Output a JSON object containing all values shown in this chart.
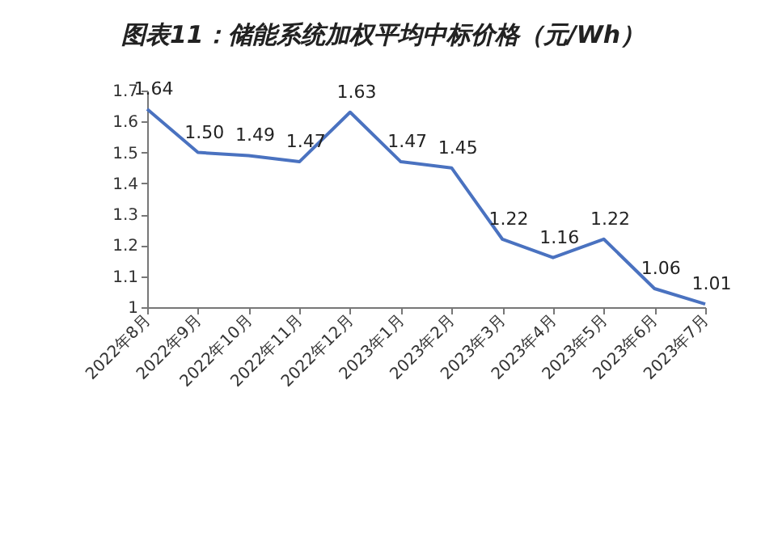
{
  "chart_data": {
    "type": "line",
    "title": "图表11：储能系统加权平均中标价格（元/Wh）",
    "categories": [
      "2022年8月",
      "2022年9月",
      "2022年10月",
      "2022年11月",
      "2022年12月",
      "2023年1月",
      "2023年2月",
      "2023年3月",
      "2023年4月",
      "2023年5月",
      "2023年6月",
      "2023年7月"
    ],
    "series": [
      {
        "color": "#4a72c0",
        "values": [
          1.64,
          1.5,
          1.49,
          1.47,
          1.63,
          1.47,
          1.45,
          1.22,
          1.16,
          1.22,
          1.06,
          1.01
        ],
        "value_labels": [
          "1.64",
          "1.50",
          "1.49",
          "1.47",
          "1.63",
          "1.47",
          "1.45",
          "1.22",
          "1.16",
          "1.22",
          "1.06",
          "1.01"
        ]
      }
    ],
    "ylim": [
      1,
      1.7
    ],
    "yticks": [
      1,
      1.1,
      1.2,
      1.3,
      1.4,
      1.5,
      1.6,
      1.7
    ],
    "grid": false,
    "legend": false,
    "marker": "none",
    "line_style": "solid"
  }
}
